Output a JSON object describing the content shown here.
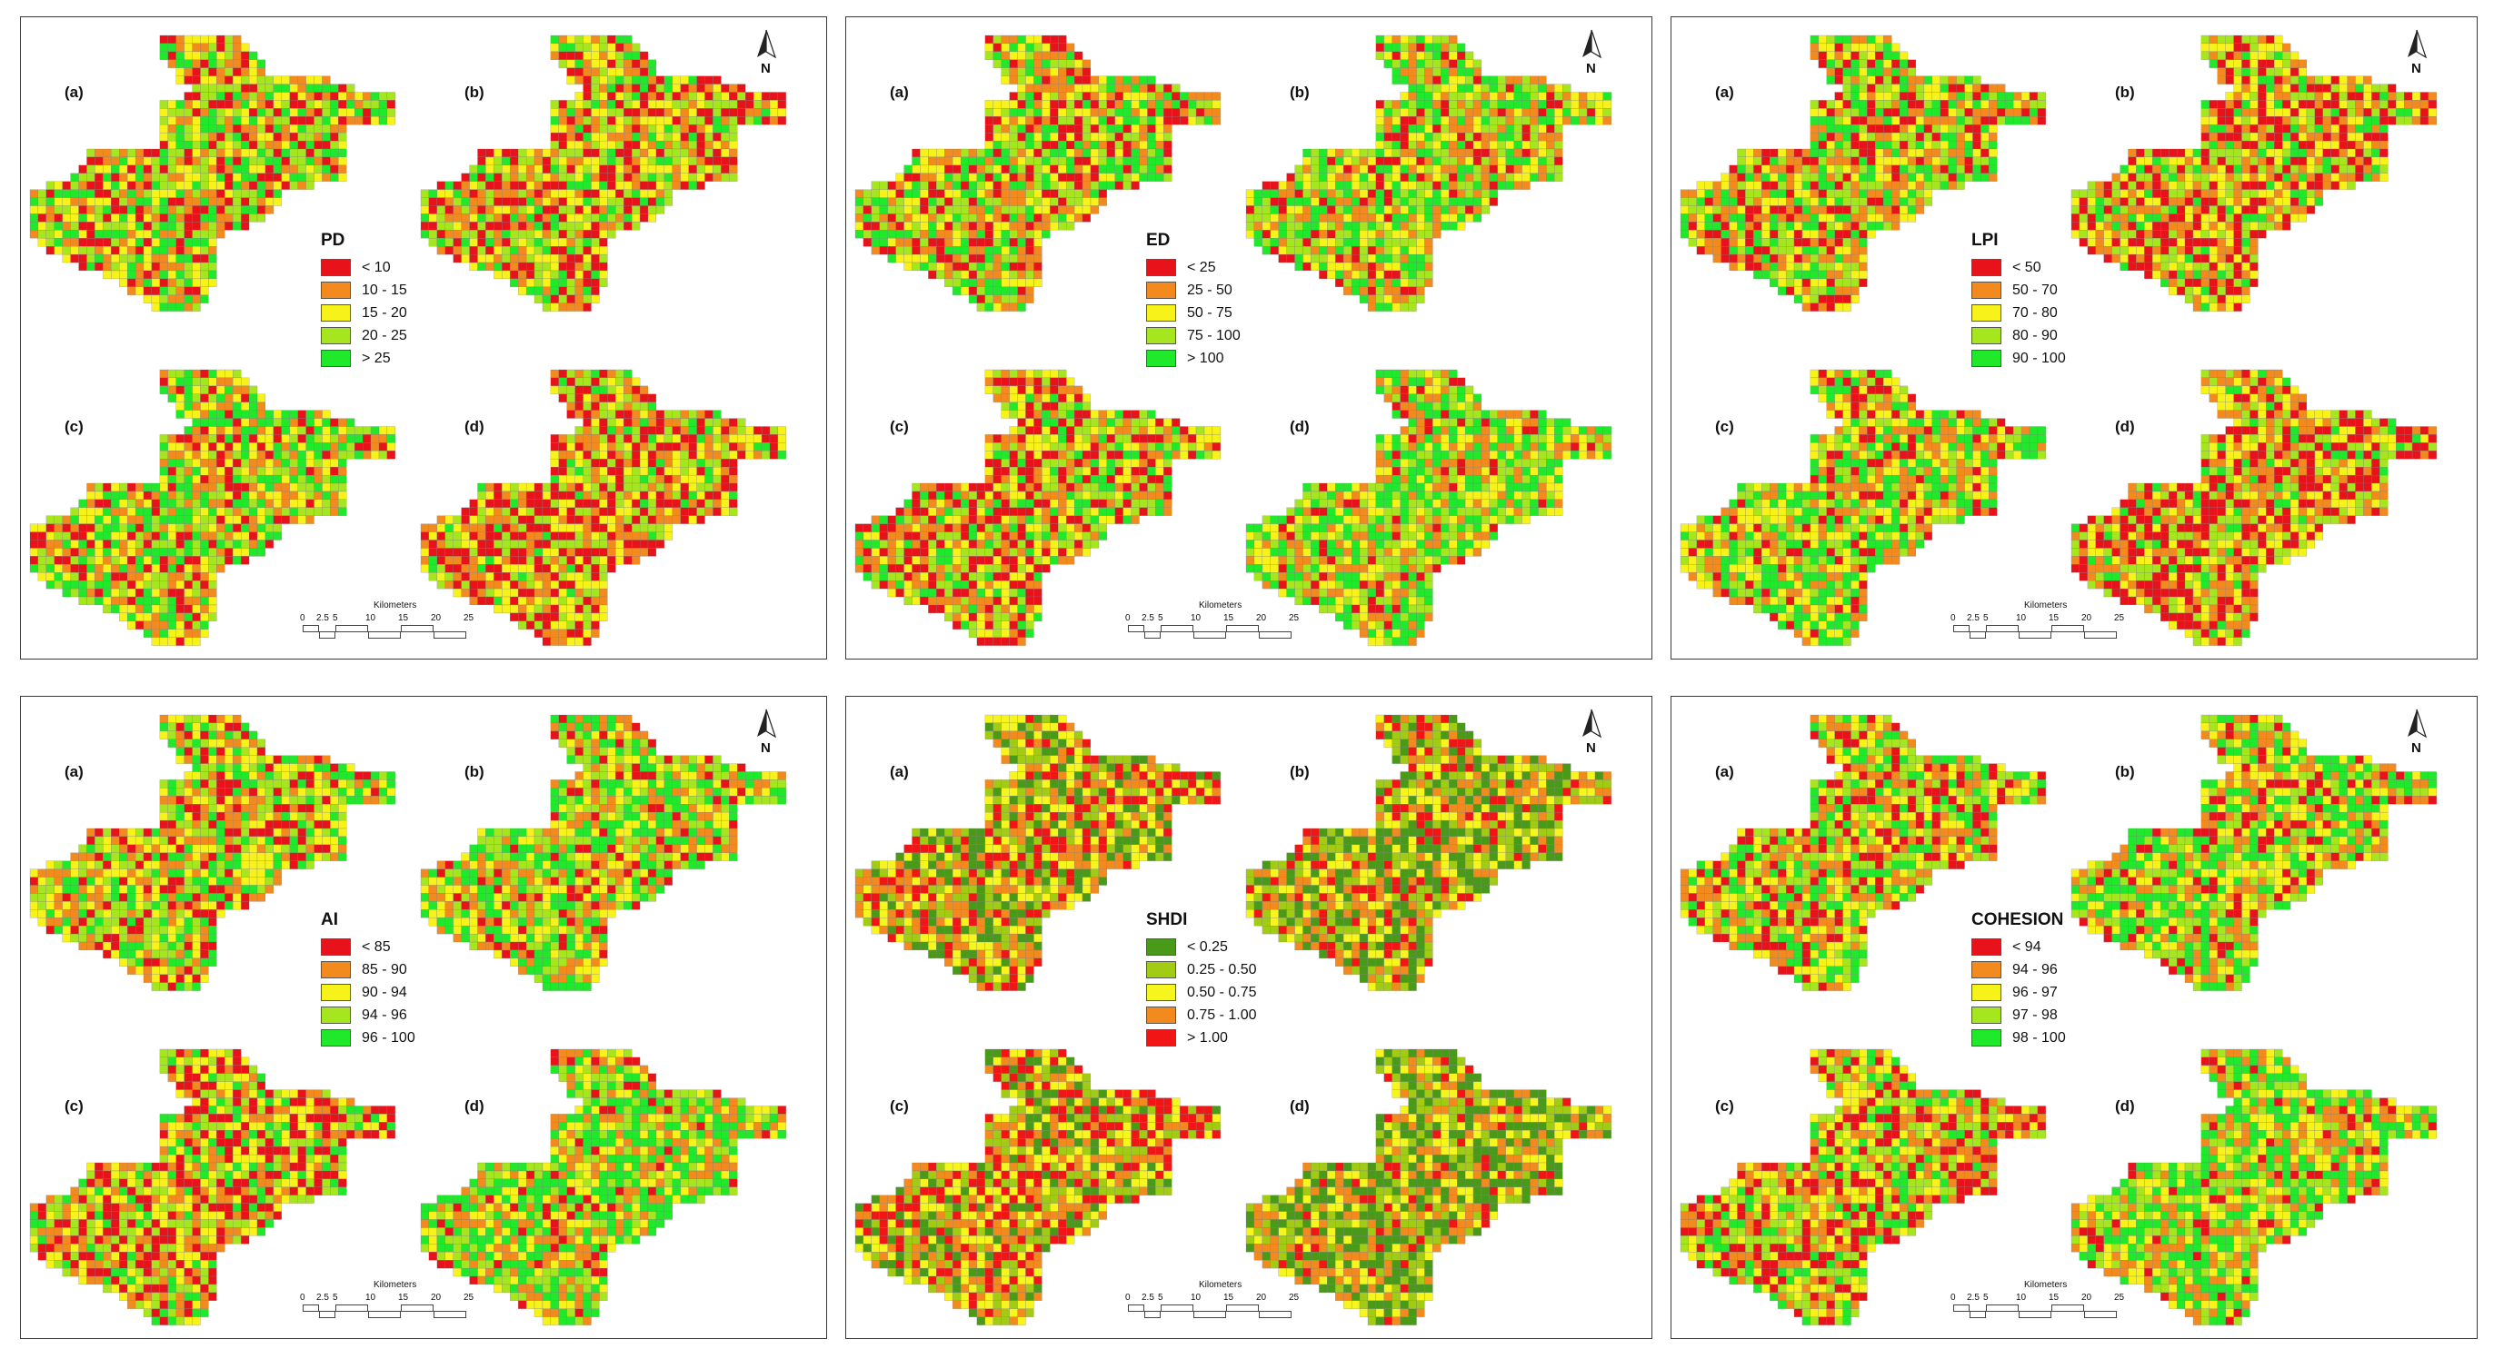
{
  "sub_labels": [
    "(a)",
    "(b)",
    "(c)",
    "(d)"
  ],
  "north_letter": "N",
  "scale_bar": {
    "title": "Kilometers",
    "ticks": [
      "0",
      "2.5",
      "5",
      "10",
      "15",
      "20",
      "25"
    ],
    "tick_values": [
      0,
      2.5,
      5,
      10,
      15,
      20,
      25
    ]
  },
  "palettes": {
    "red_to_green": [
      "#e8121b",
      "#f28a1e",
      "#f7f21a",
      "#a6e61f",
      "#20e82a"
    ],
    "green_to_red": [
      "#4a9a1a",
      "#a2cc14",
      "#f6f51e",
      "#f28a1e",
      "#f21515"
    ]
  },
  "panels": [
    {
      "metric": "PD",
      "palette": "red_to_green",
      "classes": [
        "< 10",
        "10 - 15",
        "15 - 20",
        "20 - 25",
        "> 25"
      ]
    },
    {
      "metric": "ED",
      "palette": "red_to_green",
      "classes": [
        "< 25",
        "25 - 50",
        "50 - 75",
        "75 - 100",
        "> 100"
      ]
    },
    {
      "metric": "LPI",
      "palette": "red_to_green",
      "classes": [
        "< 50",
        "50 - 70",
        "70 - 80",
        "80 - 90",
        "90 - 100"
      ]
    },
    {
      "metric": "AI",
      "palette": "red_to_green",
      "classes": [
        "< 85",
        "85 - 90",
        "90 - 94",
        "94 - 96",
        "96 - 100"
      ]
    },
    {
      "metric": "SHDI",
      "palette": "green_to_red",
      "classes": [
        "< 0.25",
        "0.25 - 0.50",
        "0.50 - 0.75",
        "0.75 - 1.00",
        "> 1.00"
      ]
    },
    {
      "metric": "COHESION",
      "palette": "red_to_green",
      "classes": [
        "< 94",
        "94 - 96",
        "96 - 97",
        "97 - 98",
        "98 - 100"
      ]
    }
  ]
}
